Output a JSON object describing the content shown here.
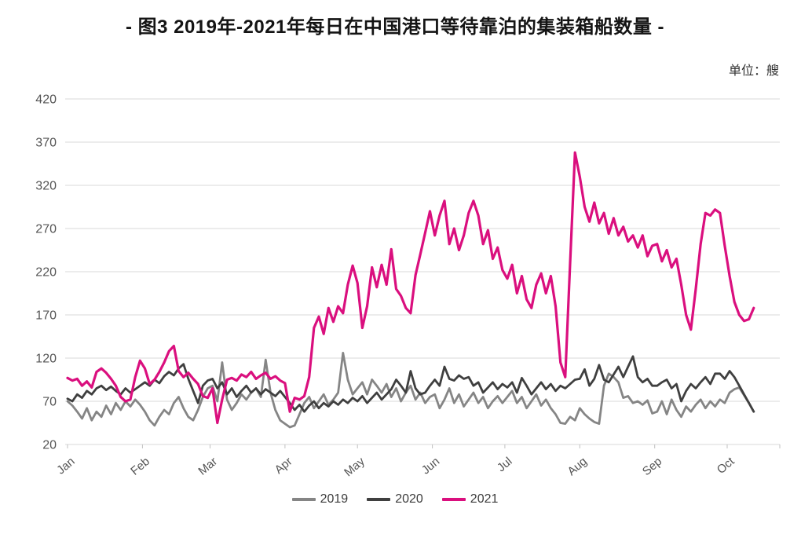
{
  "page": {
    "title": "- 图3  2019年-2021年每日在中国港口等待靠泊的集装箱船数量 -",
    "unit_label": "单位：艘",
    "background": "#ffffff"
  },
  "chart_data": {
    "type": "line",
    "title": "图3 2019年-2021年每日在中国港口等待靠泊的集装箱船数量",
    "unit": "艘",
    "grid": true,
    "legend_position": "bottom",
    "sampling": "values every 2 days, day 0 = Jan 1, last point ~Oct 12 (day 284)",
    "x_axis": {
      "tick_labels": [
        "Jan",
        "Feb",
        "Mar",
        "Apr",
        "May",
        "Jun",
        "Jul",
        "Aug",
        "Sep",
        "Oct"
      ],
      "month_start_day": [
        0,
        31,
        59,
        90,
        120,
        151,
        181,
        212,
        243,
        273
      ],
      "domain_days": [
        0,
        284
      ],
      "label_rotation_deg": -40
    },
    "y_axis": {
      "ticks": [
        20,
        70,
        120,
        170,
        220,
        270,
        320,
        370,
        420
      ],
      "min": 20,
      "max": 420
    },
    "series": [
      {
        "name": "2019",
        "color": "#858585",
        "values": [
          70,
          65,
          58,
          50,
          62,
          48,
          58,
          52,
          65,
          55,
          68,
          60,
          70,
          64,
          72,
          66,
          58,
          48,
          42,
          52,
          60,
          55,
          68,
          75,
          62,
          52,
          48,
          60,
          75,
          85,
          88,
          70,
          115,
          72,
          60,
          68,
          78,
          72,
          80,
          85,
          75,
          118,
          80,
          60,
          48,
          44,
          40,
          42,
          55,
          68,
          75,
          62,
          70,
          78,
          66,
          72,
          80,
          126,
          95,
          78,
          85,
          92,
          78,
          95,
          88,
          80,
          90,
          75,
          85,
          70,
          80,
          88,
          72,
          80,
          68,
          75,
          78,
          62,
          72,
          85,
          68,
          78,
          64,
          72,
          80,
          68,
          75,
          62,
          70,
          76,
          68,
          75,
          82,
          68,
          75,
          62,
          70,
          78,
          65,
          72,
          62,
          55,
          45,
          44,
          52,
          48,
          62,
          55,
          50,
          46,
          44,
          88,
          102,
          98,
          92,
          74,
          76,
          68,
          70,
          66,
          71,
          56,
          58,
          70,
          55,
          72,
          60,
          52,
          64,
          58,
          66,
          72,
          62,
          70,
          64,
          72,
          68,
          80,
          84,
          86,
          77,
          68,
          58
        ]
      },
      {
        "name": "2020",
        "color": "#3f3f3f",
        "values": [
          73,
          70,
          78,
          74,
          82,
          78,
          85,
          88,
          83,
          87,
          82,
          78,
          85,
          80,
          84,
          88,
          92,
          88,
          95,
          91,
          99,
          104,
          100,
          108,
          113,
          96,
          82,
          68,
          88,
          94,
          96,
          85,
          92,
          78,
          85,
          75,
          82,
          88,
          80,
          85,
          78,
          84,
          80,
          76,
          82,
          75,
          68,
          60,
          66,
          58,
          65,
          70,
          62,
          68,
          64,
          70,
          66,
          72,
          68,
          74,
          70,
          76,
          68,
          74,
          80,
          72,
          78,
          84,
          95,
          88,
          80,
          105,
          85,
          78,
          80,
          88,
          95,
          88,
          110,
          96,
          94,
          100,
          96,
          98,
          88,
          92,
          80,
          86,
          92,
          84,
          90,
          86,
          92,
          80,
          97,
          88,
          78,
          85,
          92,
          84,
          90,
          82,
          88,
          85,
          90,
          95,
          96,
          107,
          88,
          96,
          112,
          95,
          92,
          101,
          110,
          98,
          110,
          122,
          98,
          92,
          96,
          88,
          88,
          92,
          95,
          85,
          90,
          70,
          82,
          90,
          85,
          92,
          98,
          90,
          102,
          102,
          96,
          105,
          98,
          88,
          78,
          68,
          58
        ]
      },
      {
        "name": "2021",
        "color": "#da0f7e",
        "values": [
          97,
          94,
          96,
          88,
          93,
          86,
          104,
          108,
          103,
          96,
          88,
          75,
          70,
          72,
          98,
          117,
          108,
          90,
          95,
          104,
          115,
          128,
          134,
          105,
          98,
          103,
          96,
          90,
          76,
          74,
          85,
          45,
          72,
          95,
          97,
          94,
          101,
          98,
          104,
          96,
          100,
          103,
          96,
          99,
          94,
          91,
          58,
          74,
          72,
          76,
          98,
          155,
          168,
          148,
          178,
          162,
          180,
          172,
          205,
          227,
          207,
          155,
          180,
          225,
          202,
          228,
          205,
          246,
          200,
          192,
          178,
          172,
          216,
          240,
          265,
          290,
          262,
          285,
          302,
          252,
          270,
          245,
          262,
          288,
          302,
          285,
          252,
          268,
          235,
          248,
          222,
          212,
          228,
          195,
          215,
          188,
          178,
          205,
          218,
          195,
          215,
          180,
          115,
          98,
          230,
          358,
          330,
          295,
          278,
          300,
          276,
          288,
          264,
          282,
          262,
          272,
          255,
          262,
          248,
          262,
          238,
          250,
          252,
          232,
          245,
          225,
          235,
          205,
          170,
          153,
          200,
          252,
          288,
          285,
          292,
          288,
          250,
          215,
          185,
          170,
          163,
          165,
          178
        ]
      }
    ],
    "colors": {
      "gridline": "#d9d9d9",
      "tick": "#c0c0c0",
      "axis_text": "#545454",
      "legend_text": "#3c3c3c",
      "title_text": "#141414"
    }
  }
}
